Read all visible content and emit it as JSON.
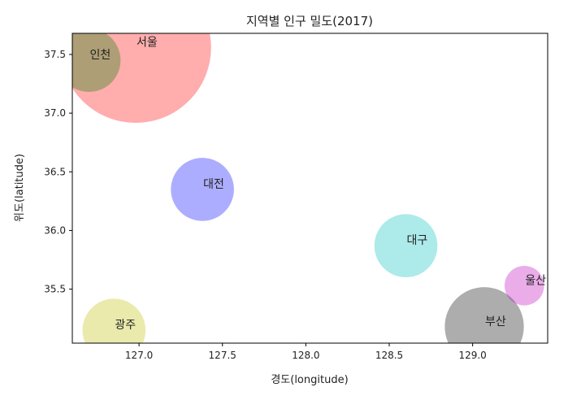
{
  "chart_data": {
    "type": "scatter",
    "title": "지역별 인구 밀도(2017)",
    "xlabel": "경도(longitude)",
    "ylabel": "위도(latitude)",
    "xlim": [
      126.6,
      129.45
    ],
    "ylim": [
      35.04,
      37.68
    ],
    "xticks": [
      "127.0",
      "127.5",
      "128.0",
      "128.5",
      "129.0"
    ],
    "yticks": [
      "35.5",
      "36.0",
      "36.5",
      "37.0",
      "37.5"
    ],
    "grid": false,
    "points": [
      {
        "label": "서울",
        "x": 126.98,
        "y": 37.56,
        "size": 16000,
        "color": "#ff0000"
      },
      {
        "label": "인천",
        "x": 126.7,
        "y": 37.45,
        "size": 2800,
        "color": "#008000"
      },
      {
        "label": "대전",
        "x": 127.38,
        "y": 36.35,
        "size": 2800,
        "color": "#0000ff"
      },
      {
        "label": "대구",
        "x": 128.6,
        "y": 35.87,
        "size": 2800,
        "color": "#00bfbf"
      },
      {
        "label": "울산",
        "x": 129.31,
        "y": 35.53,
        "size": 1100,
        "color": "#bf00bf"
      },
      {
        "label": "부산",
        "x": 129.07,
        "y": 35.18,
        "size": 4400,
        "color": "#000000"
      },
      {
        "label": "광주",
        "x": 126.85,
        "y": 35.15,
        "size": 2800,
        "color": "#bfbf00"
      }
    ]
  }
}
